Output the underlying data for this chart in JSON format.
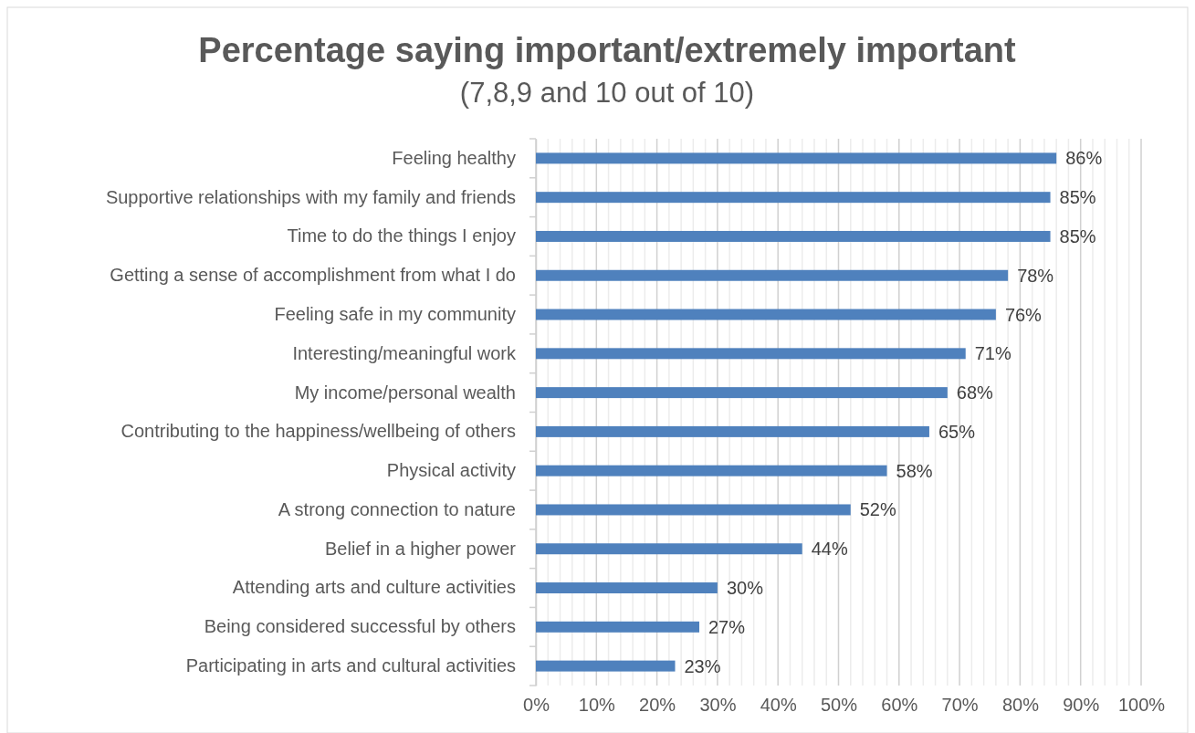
{
  "chart_data": {
    "type": "bar",
    "orientation": "horizontal",
    "title": "Percentage saying important/extremely important",
    "subtitle": "(7,8,9 and 10 out of 10)",
    "categories": [
      "Feeling healthy",
      "Supportive relationships with my family and friends",
      "Time to do the things I enjoy",
      "Getting a sense of accomplishment from what I do",
      "Feeling safe in my community",
      "Interesting/meaningful work",
      "My income/personal wealth",
      "Contributing to the happiness/wellbeing of others",
      "Physical activity",
      "A strong connection to nature",
      "Belief in a higher power",
      "Attending arts and culture activities",
      "Being considered successful by others",
      "Participating in arts and cultural activities"
    ],
    "values": [
      86,
      85,
      85,
      78,
      76,
      71,
      68,
      65,
      58,
      52,
      44,
      30,
      27,
      23
    ],
    "value_labels": [
      "86%",
      "85%",
      "85%",
      "78%",
      "76%",
      "71%",
      "68%",
      "65%",
      "58%",
      "52%",
      "44%",
      "30%",
      "27%",
      "23%"
    ],
    "color": "#4f81bd",
    "xlim": [
      0,
      100
    ],
    "xticks": [
      {
        "value": 0,
        "label": "0%"
      },
      {
        "value": 2,
        "label": null
      },
      {
        "value": 4,
        "label": null
      },
      {
        "value": 6,
        "label": null
      },
      {
        "value": 8,
        "label": null
      },
      {
        "value": 10,
        "label": "10%"
      },
      {
        "value": 12,
        "label": null
      },
      {
        "value": 14,
        "label": null
      },
      {
        "value": 16,
        "label": null
      },
      {
        "value": 18,
        "label": null
      },
      {
        "value": 20,
        "label": "20%"
      },
      {
        "value": 22,
        "label": null
      },
      {
        "value": 24,
        "label": null
      },
      {
        "value": 26,
        "label": null
      },
      {
        "value": 28,
        "label": null
      },
      {
        "value": 30,
        "label": "30%"
      },
      {
        "value": 32,
        "label": null
      },
      {
        "value": 34,
        "label": null
      },
      {
        "value": 36,
        "label": null
      },
      {
        "value": 38,
        "label": null
      },
      {
        "value": 40,
        "label": "40%"
      },
      {
        "value": 42,
        "label": null
      },
      {
        "value": 44,
        "label": null
      },
      {
        "value": 46,
        "label": null
      },
      {
        "value": 48,
        "label": null
      },
      {
        "value": 50,
        "label": "50%"
      },
      {
        "value": 52,
        "label": null
      },
      {
        "value": 54,
        "label": null
      },
      {
        "value": 56,
        "label": null
      },
      {
        "value": 58,
        "label": null
      },
      {
        "value": 60,
        "label": "60%"
      },
      {
        "value": 62,
        "label": null
      },
      {
        "value": 64,
        "label": null
      },
      {
        "value": 66,
        "label": null
      },
      {
        "value": 68,
        "label": null
      },
      {
        "value": 70,
        "label": "70%"
      },
      {
        "value": 72,
        "label": null
      },
      {
        "value": 74,
        "label": null
      },
      {
        "value": 76,
        "label": null
      },
      {
        "value": 78,
        "label": null
      },
      {
        "value": 80,
        "label": "80%"
      },
      {
        "value": 82,
        "label": null
      },
      {
        "value": 84,
        "label": null
      },
      {
        "value": 86,
        "label": null
      },
      {
        "value": 88,
        "label": null
      },
      {
        "value": 90,
        "label": "90%"
      },
      {
        "value": 92,
        "label": null
      },
      {
        "value": 94,
        "label": null
      },
      {
        "value": 96,
        "label": null
      },
      {
        "value": 98,
        "label": null
      },
      {
        "value": 100,
        "label": "100%"
      }
    ],
    "grid": "x"
  }
}
